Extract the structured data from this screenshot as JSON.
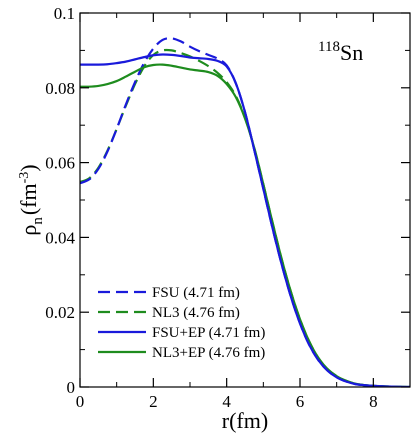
{
  "chart_data": {
    "type": "line",
    "xlabel": "r(fm)",
    "ylabel": "ρn(fm-3)",
    "ylabel_parts": {
      "base": "ρ",
      "sub": "n",
      "unit_open": "(fm",
      "unit_sup": "-3",
      "unit_close": ")"
    },
    "xlim": [
      0,
      9
    ],
    "ylim": [
      0,
      0.1
    ],
    "xticks": [
      0,
      2,
      4,
      6,
      8
    ],
    "xtick_labels": [
      "0",
      "2",
      "4",
      "6",
      "8"
    ],
    "yticks": [
      0,
      0.02,
      0.04,
      0.06,
      0.08,
      0.1
    ],
    "ytick_labels": [
      "0",
      "0.02",
      "0.04",
      "0.06",
      "0.08",
      "0.1"
    ],
    "grid": false,
    "legend_position": "bottom-left",
    "annotation": {
      "mass": "118",
      "element": "Sn"
    },
    "series": [
      {
        "name": "FSU (4.71 fm)",
        "color": "#1a1adb",
        "style": "dashed",
        "x": [
          0,
          0.25,
          0.5,
          0.75,
          1.0,
          1.25,
          1.5,
          1.75,
          2.0,
          2.25,
          2.5,
          2.75,
          3.0,
          3.25,
          3.5,
          3.75,
          4.0,
          4.25,
          4.5,
          4.75,
          5.0,
          5.25,
          5.5,
          5.75,
          6.0,
          6.25,
          6.5,
          6.75,
          7.0,
          7.25,
          7.5,
          7.75,
          8.0,
          8.5,
          9.0
        ],
        "y": [
          0.0545,
          0.0555,
          0.0583,
          0.063,
          0.069,
          0.0755,
          0.0815,
          0.0867,
          0.0905,
          0.0928,
          0.0932,
          0.0924,
          0.091,
          0.0898,
          0.0888,
          0.0878,
          0.086,
          0.0812,
          0.0735,
          0.0635,
          0.053,
          0.0425,
          0.0328,
          0.0242,
          0.017,
          0.0113,
          0.0072,
          0.0044,
          0.0026,
          0.0015,
          0.0008,
          0.0005,
          0.0003,
          0.0001,
          0.0
        ]
      },
      {
        "name": "NL3 (4.76 fm)",
        "color": "#1e8c1e",
        "style": "dashed",
        "x": [
          0,
          0.25,
          0.5,
          0.75,
          1.0,
          1.25,
          1.5,
          1.75,
          2.0,
          2.25,
          2.5,
          2.75,
          3.0,
          3.25,
          3.5,
          3.75,
          4.0,
          4.25,
          4.5,
          4.75,
          5.0,
          5.25,
          5.5,
          5.75,
          6.0,
          6.25,
          6.5,
          6.75,
          7.0,
          7.25,
          7.5,
          7.75,
          8.0,
          8.5,
          9.0
        ],
        "y": [
          0.0548,
          0.0558,
          0.0586,
          0.0632,
          0.069,
          0.0752,
          0.081,
          0.0857,
          0.0888,
          0.09,
          0.09,
          0.0893,
          0.0884,
          0.0872,
          0.0858,
          0.084,
          0.0815,
          0.0778,
          0.072,
          0.064,
          0.0542,
          0.044,
          0.0342,
          0.0255,
          0.0181,
          0.0122,
          0.0078,
          0.0048,
          0.0029,
          0.0017,
          0.0009,
          0.0005,
          0.0003,
          0.0001,
          0.0
        ]
      },
      {
        "name": "FSU+EP (4.71 fm)",
        "color": "#1a1adb",
        "style": "solid",
        "x": [
          0,
          0.25,
          0.5,
          0.75,
          1.0,
          1.25,
          1.5,
          1.75,
          2.0,
          2.25,
          2.5,
          2.75,
          3.0,
          3.25,
          3.5,
          3.75,
          4.0,
          4.25,
          4.5,
          4.75,
          5.0,
          5.25,
          5.5,
          5.75,
          6.0,
          6.25,
          6.5,
          6.75,
          7.0,
          7.25,
          7.5,
          7.75,
          8.0,
          8.5,
          9.0
        ],
        "y": [
          0.0862,
          0.0862,
          0.0862,
          0.0863,
          0.0866,
          0.087,
          0.0876,
          0.0882,
          0.0887,
          0.0889,
          0.0888,
          0.0885,
          0.0881,
          0.0879,
          0.0877,
          0.0872,
          0.0857,
          0.0812,
          0.0735,
          0.0635,
          0.053,
          0.0425,
          0.0328,
          0.0242,
          0.017,
          0.0113,
          0.0072,
          0.0044,
          0.0026,
          0.0015,
          0.0008,
          0.0005,
          0.0003,
          0.0001,
          0.0
        ]
      },
      {
        "name": "NL3+EP (4.76 fm)",
        "color": "#1e8c1e",
        "style": "solid",
        "x": [
          0,
          0.25,
          0.5,
          0.75,
          1.0,
          1.25,
          1.5,
          1.75,
          2.0,
          2.25,
          2.5,
          2.75,
          3.0,
          3.25,
          3.5,
          3.75,
          4.0,
          4.25,
          4.5,
          4.75,
          5.0,
          5.25,
          5.5,
          5.75,
          6.0,
          6.25,
          6.5,
          6.75,
          7.0,
          7.25,
          7.5,
          7.75,
          8.0,
          8.5,
          9.0
        ],
        "y": [
          0.0803,
          0.0803,
          0.0805,
          0.081,
          0.0818,
          0.083,
          0.0843,
          0.0855,
          0.0861,
          0.0862,
          0.0859,
          0.0854,
          0.0849,
          0.0846,
          0.0842,
          0.0832,
          0.081,
          0.0775,
          0.0718,
          0.064,
          0.0542,
          0.044,
          0.0342,
          0.0255,
          0.0181,
          0.0122,
          0.0078,
          0.0048,
          0.0029,
          0.0017,
          0.0009,
          0.0005,
          0.0003,
          0.0001,
          0.0
        ]
      }
    ]
  }
}
